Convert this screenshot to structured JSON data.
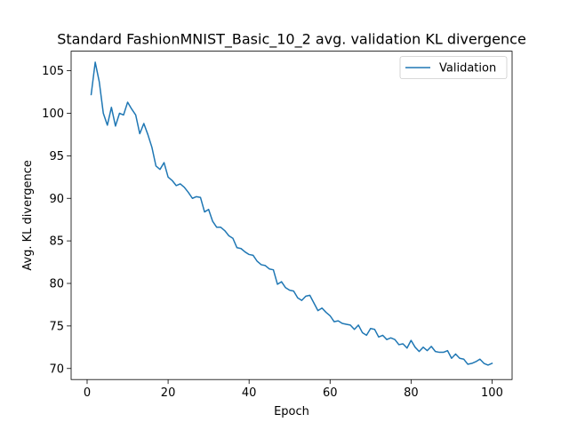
{
  "chart_data": {
    "type": "line",
    "title": "Standard FashionMNIST_Basic_10_2 avg. validation KL divergence",
    "xlabel": "Epoch",
    "ylabel": "Avg. KL divergence",
    "xlim": [
      -3.95,
      104.95
    ],
    "ylim": [
      68.7,
      107.3
    ],
    "xticks": [
      0,
      20,
      40,
      60,
      80,
      100
    ],
    "yticks": [
      70,
      75,
      80,
      85,
      90,
      95,
      100,
      105
    ],
    "grid": false,
    "legend": {
      "placement": "top-right"
    },
    "series": [
      {
        "name": "Validation",
        "color": "#1f77b4",
        "x": [
          1,
          2,
          3,
          4,
          5,
          6,
          7,
          8,
          9,
          10,
          11,
          12,
          13,
          14,
          15,
          16,
          17,
          18,
          19,
          20,
          21,
          22,
          23,
          24,
          25,
          26,
          27,
          28,
          29,
          30,
          31,
          32,
          33,
          34,
          35,
          36,
          37,
          38,
          39,
          40,
          41,
          42,
          43,
          44,
          45,
          46,
          47,
          48,
          49,
          50,
          51,
          52,
          53,
          54,
          55,
          56,
          57,
          58,
          59,
          60,
          61,
          62,
          63,
          64,
          65,
          66,
          67,
          68,
          69,
          70,
          71,
          72,
          73,
          74,
          75,
          76,
          77,
          78,
          79,
          80,
          81,
          82,
          83,
          84,
          85,
          86,
          87,
          88,
          89,
          90,
          91,
          92,
          93,
          94,
          95,
          96,
          97,
          98,
          99,
          100
        ],
        "values": [
          102.2,
          106.0,
          103.7,
          100.0,
          98.6,
          100.7,
          98.5,
          100.0,
          99.8,
          101.3,
          100.5,
          99.8,
          97.6,
          98.8,
          97.5,
          96.0,
          93.8,
          93.4,
          94.2,
          92.5,
          92.1,
          91.5,
          91.7,
          91.3,
          90.7,
          90.0,
          90.2,
          90.1,
          88.4,
          88.7,
          87.3,
          86.6,
          86.6,
          86.2,
          85.6,
          85.3,
          84.2,
          84.1,
          83.7,
          83.4,
          83.3,
          82.6,
          82.2,
          82.1,
          81.7,
          81.6,
          79.9,
          80.2,
          79.5,
          79.2,
          79.1,
          78.3,
          78.0,
          78.5,
          78.6,
          77.7,
          76.8,
          77.1,
          76.6,
          76.2,
          75.5,
          75.6,
          75.3,
          75.2,
          75.1,
          74.6,
          75.1,
          74.2,
          73.9,
          74.7,
          74.6,
          73.7,
          73.9,
          73.4,
          73.6,
          73.4,
          72.8,
          72.9,
          72.4,
          73.3,
          72.5,
          72.0,
          72.5,
          72.1,
          72.6,
          72.0,
          71.9,
          71.9,
          72.1,
          71.2,
          71.7,
          71.2,
          71.1,
          70.5,
          70.6,
          70.8,
          71.1,
          70.6,
          70.4,
          70.6
        ]
      }
    ]
  }
}
